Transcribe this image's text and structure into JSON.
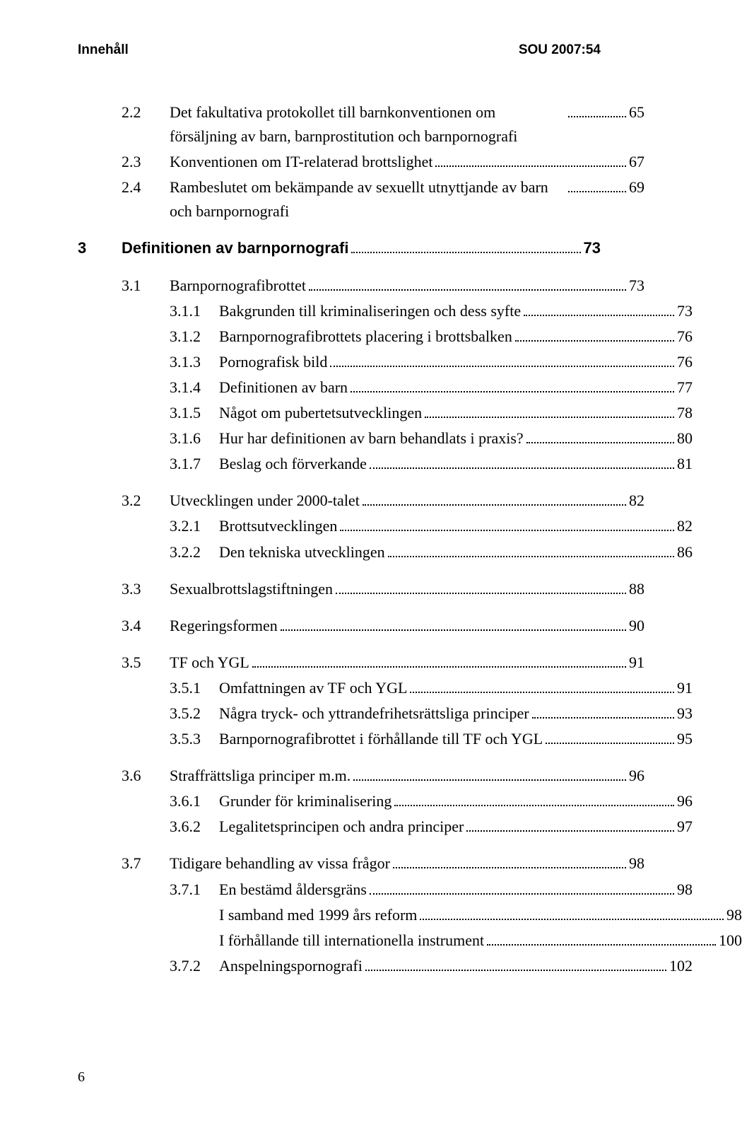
{
  "header": {
    "left": "Innehåll",
    "right": "SOU 2007:54"
  },
  "footer_page": "6",
  "blocks": [
    {
      "type": "plain",
      "rows": [
        {
          "num": "2.2",
          "label": "Det fakultativa protokollet till barnkonventionen om försäljning av barn, barnprostitution och barnpornografi",
          "page": "65",
          "indent": 1,
          "multi": true
        },
        {
          "num": "2.3",
          "label": "Konventionen om IT-relaterad brottslighet",
          "page": "67",
          "indent": 1
        },
        {
          "num": "2.4",
          "label": "Rambeslutet om bekämpande av sexuellt utnyttjande av barn och barnpornografi",
          "page": "69",
          "indent": 1,
          "multi": true
        }
      ]
    },
    {
      "type": "chapter",
      "num": "3",
      "label": "Definitionen av barnpornografi",
      "page": "73"
    },
    {
      "type": "plain",
      "rows": [
        {
          "num": "3.1",
          "label": "Barnpornografibrottet",
          "page": "73",
          "indent": 1
        },
        {
          "num": "3.1.1",
          "label": "Bakgrunden till kriminaliseringen och dess syfte",
          "page": "73",
          "indent": 2
        },
        {
          "num": "3.1.2",
          "label": "Barnpornografibrottets placering i brottsbalken",
          "page": "76",
          "indent": 2
        },
        {
          "num": "3.1.3",
          "label": "Pornografisk bild",
          "page": "76",
          "indent": 2
        },
        {
          "num": "3.1.4",
          "label": "Definitionen av barn",
          "page": "77",
          "indent": 2
        },
        {
          "num": "3.1.5",
          "label": "Något om pubertetsutvecklingen",
          "page": "78",
          "indent": 2
        },
        {
          "num": "3.1.6",
          "label": "Hur har definitionen av barn behandlats i praxis?",
          "page": "80",
          "indent": 2
        },
        {
          "num": "3.1.7",
          "label": "Beslag och förverkande",
          "page": "81",
          "indent": 2
        }
      ]
    },
    {
      "type": "plain",
      "rows": [
        {
          "num": "3.2",
          "label": "Utvecklingen under 2000-talet",
          "page": "82",
          "indent": 1
        },
        {
          "num": "3.2.1",
          "label": "Brottsutvecklingen",
          "page": "82",
          "indent": 2
        },
        {
          "num": "3.2.2",
          "label": "Den tekniska utvecklingen",
          "page": "86",
          "indent": 2
        }
      ]
    },
    {
      "type": "plain",
      "rows": [
        {
          "num": "3.3",
          "label": "Sexualbrottslagstiftningen",
          "page": "88",
          "indent": 1
        }
      ]
    },
    {
      "type": "plain",
      "rows": [
        {
          "num": "3.4",
          "label": "Regeringsformen",
          "page": "90",
          "indent": 1
        }
      ]
    },
    {
      "type": "plain",
      "rows": [
        {
          "num": "3.5",
          "label": "TF och YGL",
          "page": "91",
          "indent": 1
        },
        {
          "num": "3.5.1",
          "label": "Omfattningen av TF och YGL",
          "page": "91",
          "indent": 2
        },
        {
          "num": "3.5.2",
          "label": "Några tryck- och yttrandefrihetsrättsliga principer",
          "page": "93",
          "indent": 2,
          "multi": true
        },
        {
          "num": "3.5.3",
          "label": "Barnpornografibrottet i förhållande till TF och YGL",
          "page": "95",
          "indent": 2,
          "multi": true
        }
      ]
    },
    {
      "type": "plain",
      "rows": [
        {
          "num": "3.6",
          "label": "Straffrättsliga principer m.m.",
          "page": "96",
          "indent": 1
        },
        {
          "num": "3.6.1",
          "label": "Grunder för kriminalisering",
          "page": "96",
          "indent": 2
        },
        {
          "num": "3.6.2",
          "label": "Legalitetsprincipen och andra principer",
          "page": "97",
          "indent": 2
        }
      ]
    },
    {
      "type": "plain",
      "rows": [
        {
          "num": "3.7",
          "label": "Tidigare behandling av vissa frågor",
          "page": "98",
          "indent": 1
        },
        {
          "num": "3.7.1",
          "label": "En bestämd åldersgräns",
          "page": "98",
          "indent": 2
        },
        {
          "num": "",
          "label": "I samband med 1999 års reform",
          "page": "98",
          "indent": "S"
        },
        {
          "num": "",
          "label": "I förhållande till internationella instrument",
          "page": "100",
          "indent": "S"
        },
        {
          "num": "3.7.2",
          "label": "Anspelningspornografi",
          "page": "102",
          "indent": 2
        }
      ]
    }
  ]
}
